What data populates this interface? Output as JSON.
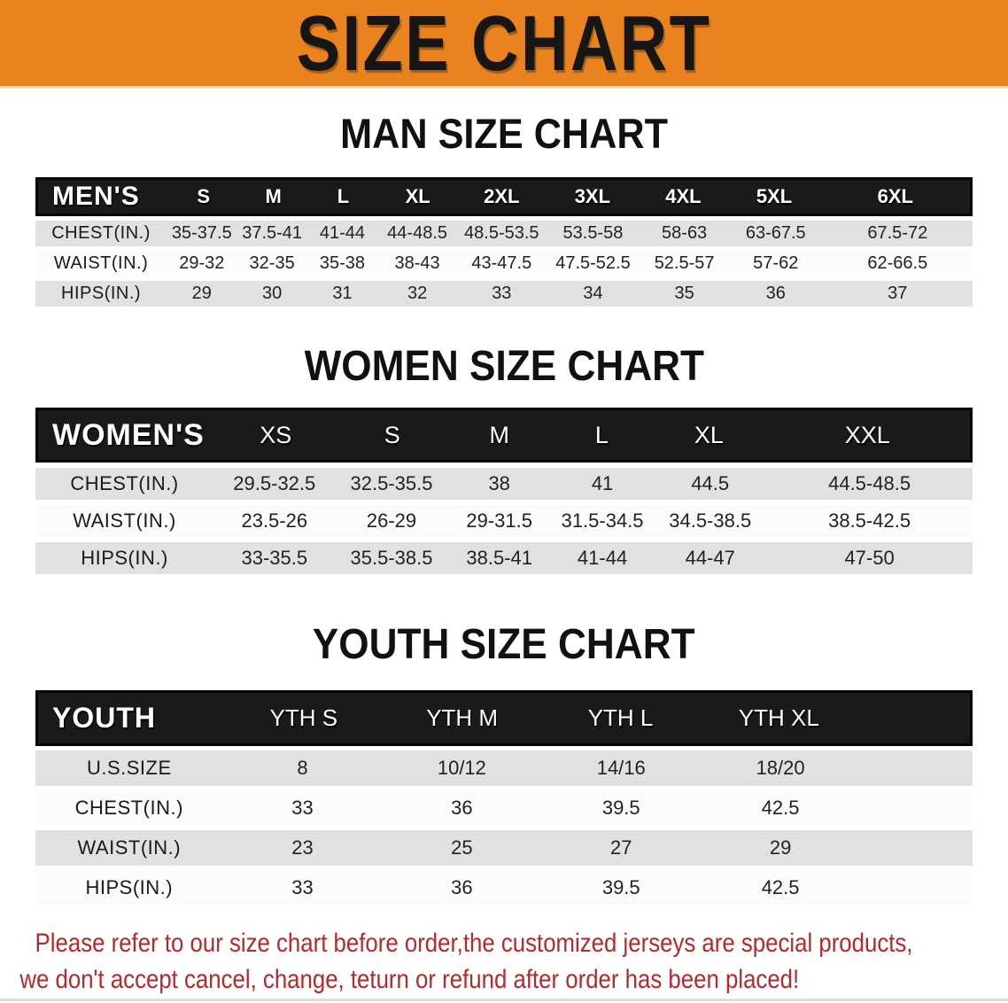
{
  "banner": {
    "title": "SIZE CHART"
  },
  "colors": {
    "banner_orange": "#E8831F",
    "header_black": "#1A1A1A",
    "row_gray": "#E1E1E1",
    "row_white": "#FBFBFB",
    "disclaimer_red": "#B7282A"
  },
  "men": {
    "heading": "MAN SIZE CHART",
    "corner": "MEN'S",
    "sizes": [
      "S",
      "M",
      "L",
      "XL",
      "2XL",
      "3XL",
      "4XL",
      "5XL",
      "6XL"
    ],
    "rows": [
      {
        "label": "CHEST(IN.)",
        "values": [
          "35-37.5",
          "37.5-41",
          "41-44",
          "44-48.5",
          "48.5-53.5",
          "53.5-58",
          "58-63",
          "63-67.5",
          "67.5-72"
        ]
      },
      {
        "label": "WAIST(IN.)",
        "values": [
          "29-32",
          "32-35",
          "35-38",
          "38-43",
          "43-47.5",
          "47.5-52.5",
          "52.5-57",
          "57-62",
          "62-66.5"
        ]
      },
      {
        "label": "HIPS(IN.)",
        "values": [
          "29",
          "30",
          "31",
          "32",
          "33",
          "34",
          "35",
          "36",
          "37"
        ]
      }
    ]
  },
  "women": {
    "heading": "WOMEN SIZE CHART",
    "corner": "WOMEN'S",
    "sizes": [
      "XS",
      "S",
      "M",
      "L",
      "XL",
      "XXL"
    ],
    "rows": [
      {
        "label": "CHEST(IN.)",
        "values": [
          "29.5-32.5",
          "32.5-35.5",
          "38",
          "41",
          "44.5",
          "44.5-48.5"
        ]
      },
      {
        "label": "WAIST(IN.)",
        "values": [
          "23.5-26",
          "26-29",
          "29-31.5",
          "31.5-34.5",
          "34.5-38.5",
          "38.5-42.5"
        ]
      },
      {
        "label": "HIPS(IN.)",
        "values": [
          "33-35.5",
          "35.5-38.5",
          "38.5-41",
          "41-44",
          "44-47",
          "47-50"
        ]
      }
    ]
  },
  "youth": {
    "heading": "YOUTH SIZE CHART",
    "corner": "YOUTH",
    "sizes": [
      "YTH S",
      "YTH M",
      "YTH L",
      "YTH XL"
    ],
    "rows": [
      {
        "label": "U.S.SIZE",
        "values": [
          "8",
          "10/12",
          "14/16",
          "18/20"
        ]
      },
      {
        "label": "CHEST(IN.)",
        "values": [
          "33",
          "36",
          "39.5",
          "42.5"
        ]
      },
      {
        "label": "WAIST(IN.)",
        "values": [
          "23",
          "25",
          "27",
          "29"
        ]
      },
      {
        "label": "HIPS(IN.)",
        "values": [
          "33",
          "36",
          "39.5",
          "42.5"
        ]
      }
    ]
  },
  "disclaimer": {
    "line1": "Please refer to our size chart before order,the customized jerseys are special products,",
    "line2": "we don't accept cancel, change, teturn or refund after order has been placed!"
  }
}
